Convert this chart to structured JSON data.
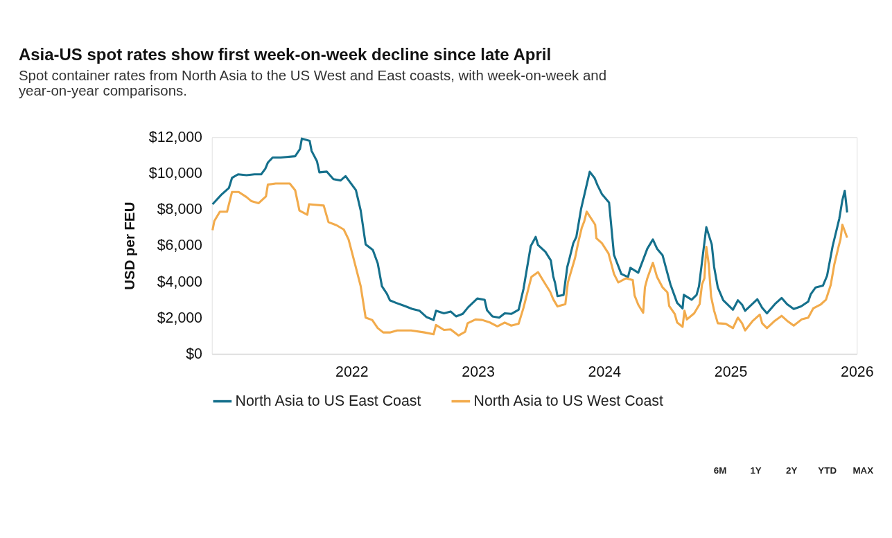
{
  "chart_data": {
    "type": "line",
    "title": "Asia-US spot rates show first week-on-week decline since late April",
    "subtitle": [
      "Spot container rates from North Asia to the US West and East coasts, with week-on-week and",
      "year-on-year comparisons."
    ],
    "ylabel": "USD per FEU",
    "xlim": [
      2020.894,
      2026.0
    ],
    "xticks": [
      2022,
      2023,
      2024,
      2025,
      2026
    ],
    "ylim": [
      0,
      12000
    ],
    "yticks": [
      {
        "value": 0,
        "label": "$0"
      },
      {
        "value": 2000,
        "label": "$2,000"
      },
      {
        "value": 4000,
        "label": "$4,000"
      },
      {
        "value": 6000,
        "label": "$6,000"
      },
      {
        "value": 8000,
        "label": "$8,000"
      },
      {
        "value": 10000,
        "label": "$10,000"
      },
      {
        "value": 12000,
        "label": "$12,000"
      }
    ],
    "grid": false,
    "legend": "bottom",
    "marker": "none",
    "line_style": "solid",
    "annotations": [
      "6M",
      "1Y",
      "2Y",
      "YTD",
      "MAX"
    ],
    "series": [
      {
        "name": "North Asia to US East Coast",
        "color": "#15708c",
        "x": [
          2020.899,
          2020.966,
          2021.029,
          2021.053,
          2021.101,
          2021.168,
          2021.231,
          2021.284,
          2021.317,
          2021.337,
          2021.375,
          2021.438,
          2021.553,
          2021.591,
          2021.606,
          2021.668,
          2021.683,
          2021.726,
          2021.745,
          2021.803,
          2021.856,
          2021.913,
          2021.952,
          2022.034,
          2022.072,
          2022.111,
          2022.168,
          2022.207,
          2022.24,
          2022.279,
          2022.303,
          2022.351,
          2022.418,
          2022.481,
          2022.538,
          2022.591,
          2022.649,
          2022.668,
          2022.731,
          2022.784,
          2022.827,
          2022.88,
          2022.923,
          2022.995,
          2023.053,
          2023.072,
          2023.115,
          2023.168,
          2023.212,
          2023.264,
          2023.322,
          2023.361,
          2023.418,
          2023.457,
          2023.476,
          2023.534,
          2023.577,
          2023.596,
          2023.611,
          2023.63,
          2023.678,
          2023.707,
          2023.721,
          2023.755,
          2023.779,
          2023.817,
          2023.885,
          2023.923,
          2023.947,
          2023.981,
          2024.038,
          2024.077,
          2024.101,
          2024.135,
          2024.188,
          2024.207,
          2024.269,
          2024.341,
          2024.385,
          2024.418,
          2024.462,
          2024.524,
          2024.577,
          2024.62,
          2024.63,
          2024.692,
          2024.731,
          2024.75,
          2024.808,
          2024.851,
          2024.87,
          2024.899,
          2024.942,
          2025.019,
          2025.058,
          2025.091,
          2025.115,
          2025.212,
          2025.25,
          2025.288,
          2025.351,
          2025.404,
          2025.447,
          2025.5,
          2025.558,
          2025.615,
          2025.635,
          2025.673,
          2025.731,
          2025.764,
          2025.808,
          2025.861,
          2025.885,
          2025.904,
          2025.923
        ],
        "values": [
          8290,
          8800,
          9200,
          9750,
          9950,
          9900,
          9950,
          9950,
          10260,
          10600,
          10880,
          10880,
          10950,
          11350,
          11930,
          11800,
          11250,
          10670,
          10060,
          10100,
          9680,
          9610,
          9850,
          9070,
          7940,
          6070,
          5760,
          5010,
          3750,
          3340,
          2970,
          2830,
          2660,
          2490,
          2390,
          2050,
          1880,
          2390,
          2250,
          2350,
          2080,
          2220,
          2590,
          3070,
          3000,
          2420,
          2080,
          2010,
          2250,
          2220,
          2450,
          3610,
          5970,
          6480,
          6030,
          5660,
          5180,
          4300,
          3920,
          3200,
          3270,
          4810,
          5180,
          6140,
          6480,
          8050,
          10090,
          9750,
          9340,
          8860,
          8390,
          5490,
          5050,
          4430,
          4260,
          4770,
          4500,
          5830,
          6340,
          5830,
          5460,
          3850,
          2830,
          2520,
          3270,
          3000,
          3270,
          3750,
          7020,
          6070,
          4810,
          3680,
          2970,
          2450,
          2970,
          2730,
          2390,
          3030,
          2560,
          2250,
          2760,
          3100,
          2760,
          2490,
          2630,
          2900,
          3310,
          3680,
          3780,
          4330,
          5970,
          7500,
          8520,
          9040,
          7840
        ]
      },
      {
        "name": "North Asia to US West Coast",
        "color": "#f2ab4c",
        "x": [
          2020.899,
          2020.913,
          2020.957,
          2021.014,
          2021.053,
          2021.106,
          2021.168,
          2021.207,
          2021.264,
          2021.322,
          2021.337,
          2021.399,
          2021.51,
          2021.553,
          2021.587,
          2021.649,
          2021.663,
          2021.779,
          2021.817,
          2021.88,
          2021.938,
          2021.976,
          2022.014,
          2022.072,
          2022.111,
          2022.163,
          2022.207,
          2022.25,
          2022.303,
          2022.361,
          2022.471,
          2022.577,
          2022.649,
          2022.668,
          2022.731,
          2022.784,
          2022.846,
          2022.899,
          2022.918,
          2022.981,
          2023.034,
          2023.096,
          2023.154,
          2023.212,
          2023.264,
          2023.322,
          2023.361,
          2023.399,
          2023.423,
          2023.476,
          2023.514,
          2023.572,
          2023.596,
          2023.63,
          2023.692,
          2023.712,
          2023.769,
          2023.793,
          2023.822,
          2023.841,
          2023.861,
          2023.928,
          2023.938,
          2023.981,
          2024.034,
          2024.077,
          2024.111,
          2024.173,
          2024.226,
          2024.24,
          2024.269,
          2024.308,
          2024.322,
          2024.341,
          2024.385,
          2024.418,
          2024.462,
          2024.5,
          2024.514,
          2024.558,
          2024.577,
          2024.62,
          2024.635,
          2024.654,
          2024.712,
          2024.755,
          2024.774,
          2024.793,
          2024.808,
          2024.827,
          2024.846,
          2024.87,
          2024.899,
          2024.962,
          2025.019,
          2025.058,
          2025.091,
          2025.115,
          2025.173,
          2025.231,
          2025.25,
          2025.288,
          2025.351,
          2025.404,
          2025.447,
          2025.5,
          2025.562,
          2025.615,
          2025.654,
          2025.712,
          2025.755,
          2025.793,
          2025.822,
          2025.856,
          2025.87,
          2025.885,
          2025.923
        ],
        "values": [
          6850,
          7360,
          7880,
          7880,
          8970,
          8970,
          8690,
          8460,
          8350,
          8730,
          9380,
          9440,
          9440,
          9070,
          7940,
          7710,
          8290,
          8220,
          7300,
          7130,
          6890,
          6340,
          5320,
          3750,
          2010,
          1880,
          1430,
          1190,
          1190,
          1300,
          1300,
          1190,
          1090,
          1600,
          1330,
          1360,
          1020,
          1230,
          1700,
          1910,
          1880,
          1740,
          1530,
          1740,
          1570,
          1670,
          2560,
          3610,
          4260,
          4530,
          4090,
          3440,
          3030,
          2630,
          2760,
          3960,
          5320,
          6140,
          6990,
          7330,
          7880,
          7160,
          6410,
          6140,
          5560,
          4430,
          3960,
          4190,
          4090,
          3240,
          2730,
          2280,
          3680,
          4190,
          5050,
          4260,
          3680,
          3410,
          2660,
          2220,
          1740,
          1500,
          2390,
          1910,
          2250,
          2760,
          3850,
          4190,
          5930,
          4980,
          3170,
          2390,
          1700,
          1670,
          1430,
          2010,
          1700,
          1300,
          1810,
          2180,
          1700,
          1430,
          1840,
          2110,
          1840,
          1570,
          1910,
          2010,
          2520,
          2730,
          3000,
          3820,
          4980,
          5970,
          6340,
          7160,
          6440
        ]
      }
    ]
  }
}
